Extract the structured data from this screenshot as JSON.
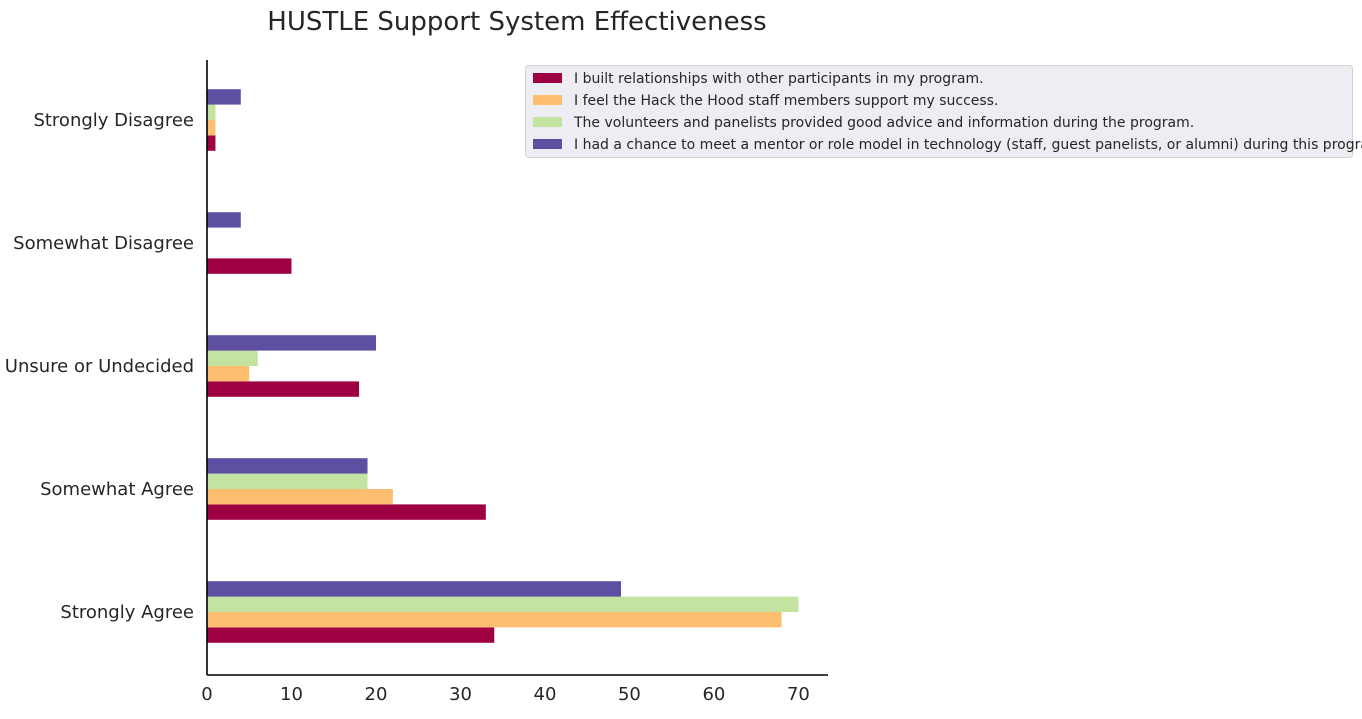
{
  "chart_data": {
    "type": "bar",
    "orientation": "horizontal",
    "title": "HUSTLE Support System Effectiveness",
    "xlabel": "",
    "ylabel": "",
    "categories": [
      "Strongly Agree",
      "Somewhat Agree",
      "Unsure or Undecided",
      "Somewhat Disagree",
      "Strongly Disagree"
    ],
    "x_ticks": [
      0,
      10,
      20,
      30,
      40,
      50,
      60,
      70
    ],
    "xlim": [
      0,
      73.5
    ],
    "grid": false,
    "legend_position": "top-right",
    "series": [
      {
        "name": "I built relationships with other participants in my program.",
        "color": "#9e0142",
        "values": [
          34,
          33,
          18,
          10,
          1
        ]
      },
      {
        "name": "I feel the Hack the Hood staff members support my success.",
        "color": "#fdbf6f",
        "values": [
          68,
          22,
          5,
          0,
          1
        ]
      },
      {
        "name": "The volunteers and panelists provided good advice and information during the program.",
        "color": "#c2e4a0",
        "values": [
          70,
          19,
          6,
          0,
          1
        ]
      },
      {
        "name": "I had a chance to meet a mentor or role model in technology (staff, guest panelists, or alumni) during this program.",
        "color": "#5e4fa2",
        "values": [
          49,
          19,
          20,
          4,
          4
        ]
      }
    ]
  }
}
